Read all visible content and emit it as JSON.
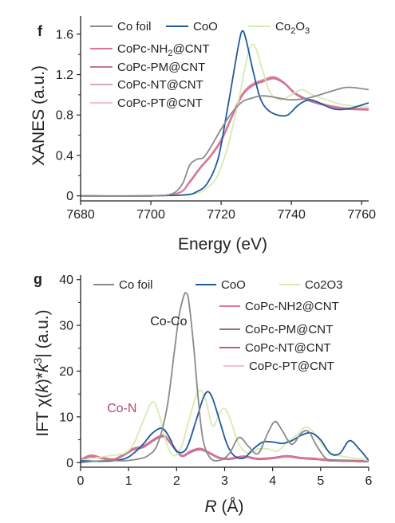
{
  "chart_data": [
    {
      "panel_label": "f",
      "type": "line",
      "xlabel": "Energy (eV)",
      "ylabel": "XANES (a.u.)",
      "xlim": [
        7680,
        7762
      ],
      "ylim": [
        -0.05,
        1.78
      ],
      "xticks": [
        7680,
        7700,
        7720,
        7740,
        7760
      ],
      "yticks": [
        0,
        0.4,
        0.8,
        1.2,
        1.6
      ],
      "ytick_labels": [
        "0",
        "0.4",
        "0.8",
        "1.2",
        "1.6"
      ],
      "legend": [
        "Co foil",
        "CoO",
        "Co2O3",
        "CoPc-NH2@CNT",
        "CoPc-PM@CNT",
        "CoPc-NT@CNT",
        "CoPc-PT@CNT"
      ],
      "legend_html": {
        "Co2O3": [
          "Co",
          "2",
          "O",
          "3"
        ],
        "CoPc-NH2@CNT": [
          "CoPc-NH",
          "2",
          "@CNT",
          ""
        ]
      },
      "series": [
        {
          "name": "Co foil",
          "color": "#8a8a8a",
          "x": [
            7680,
            7700,
            7706,
            7709,
            7711,
            7713,
            7715,
            7717,
            7720,
            7723,
            7726,
            7729,
            7732,
            7736,
            7740,
            7745,
            7750,
            7755,
            7758,
            7762
          ],
          "y": [
            0.0,
            0.0,
            0.02,
            0.12,
            0.3,
            0.36,
            0.38,
            0.48,
            0.66,
            0.82,
            0.93,
            0.97,
            0.99,
            0.97,
            0.95,
            0.97,
            1.02,
            1.07,
            1.07,
            1.05
          ]
        },
        {
          "name": "CoO",
          "color": "#1f5a9c",
          "x": [
            7680,
            7700,
            7710,
            7713,
            7716,
            7719,
            7721,
            7723,
            7725,
            7726,
            7727,
            7729,
            7731,
            7733,
            7736,
            7739,
            7742,
            7745,
            7748,
            7752,
            7756,
            7762
          ],
          "y": [
            0.0,
            0.0,
            0.01,
            0.04,
            0.12,
            0.35,
            0.7,
            1.1,
            1.5,
            1.63,
            1.56,
            1.25,
            0.98,
            0.86,
            0.8,
            0.8,
            0.9,
            0.95,
            0.92,
            0.86,
            0.86,
            0.92
          ]
        },
        {
          "name": "Co2O3",
          "color": "#d6ecb0",
          "x": [
            7680,
            7700,
            7712,
            7716,
            7719,
            7722,
            7725,
            7727,
            7728,
            7729,
            7730,
            7732,
            7734,
            7737,
            7740,
            7743,
            7746,
            7750,
            7755,
            7762
          ],
          "y": [
            0.0,
            0.0,
            0.02,
            0.08,
            0.2,
            0.5,
            0.95,
            1.3,
            1.45,
            1.5,
            1.45,
            1.22,
            1.02,
            0.95,
            1.0,
            1.05,
            1.0,
            0.95,
            0.9,
            0.88
          ]
        },
        {
          "name": "CoPc-NH2@CNT",
          "color": "#e07598",
          "x": [
            7680,
            7700,
            7708,
            7711,
            7714,
            7717,
            7720,
            7723,
            7726,
            7729,
            7732,
            7735,
            7738,
            7741,
            7745,
            7750,
            7755,
            7762
          ],
          "y": [
            0.0,
            0.0,
            0.03,
            0.14,
            0.28,
            0.4,
            0.55,
            0.78,
            1.0,
            1.1,
            1.14,
            1.17,
            1.12,
            1.02,
            0.95,
            0.9,
            0.87,
            0.86
          ]
        },
        {
          "name": "CoPc-PM@CNT",
          "color": "#c27597",
          "x": [
            7680,
            7700,
            7708,
            7711,
            7714,
            7717,
            7720,
            7723,
            7726,
            7729,
            7732,
            7735,
            7738,
            7741,
            7745,
            7750,
            7755,
            7762
          ],
          "y": [
            0.0,
            0.0,
            0.03,
            0.13,
            0.27,
            0.39,
            0.54,
            0.77,
            0.99,
            1.09,
            1.13,
            1.16,
            1.11,
            1.01,
            0.94,
            0.89,
            0.86,
            0.85
          ]
        },
        {
          "name": "CoPc-NT@CNT",
          "color": "#d9a7b8",
          "x": [
            7680,
            7700,
            7708,
            7711,
            7714,
            7717,
            7720,
            7723,
            7726,
            7729,
            7732,
            7735,
            7738,
            7741,
            7745,
            7750,
            7755,
            7762
          ],
          "y": [
            0.0,
            0.0,
            0.03,
            0.14,
            0.28,
            0.4,
            0.56,
            0.79,
            1.01,
            1.11,
            1.15,
            1.18,
            1.12,
            1.02,
            0.95,
            0.9,
            0.87,
            0.86
          ]
        },
        {
          "name": "CoPc-PT@CNT",
          "color": "#f2bfcf",
          "x": [
            7680,
            7700,
            7708,
            7711,
            7714,
            7717,
            7720,
            7723,
            7726,
            7729,
            7732,
            7735,
            7738,
            7741,
            7745,
            7750,
            7755,
            7762
          ],
          "y": [
            0.0,
            0.0,
            0.03,
            0.14,
            0.28,
            0.4,
            0.55,
            0.78,
            1.0,
            1.1,
            1.14,
            1.17,
            1.12,
            1.02,
            0.95,
            0.9,
            0.87,
            0.86
          ]
        }
      ]
    },
    {
      "panel_label": "g",
      "type": "line",
      "xlabel_html": [
        "R",
        " (Å)"
      ],
      "ylabel_html": [
        "IFT χ(",
        "k",
        ")*",
        "k",
        "3",
        "| (a.u.)"
      ],
      "xlim": [
        0,
        6
      ],
      "ylim": [
        -1,
        41
      ],
      "xticks": [
        0,
        1,
        2,
        3,
        4,
        5,
        6
      ],
      "yticks": [
        0,
        10,
        20,
        30,
        40
      ],
      "legend": [
        "Co foil",
        "CoO",
        "Co2O3",
        "CoPc-NH2@CNT",
        "CoPc-PM@CNT",
        "CoPc-NT@CNT",
        "CoPc-PT@CNT"
      ],
      "annotations": [
        {
          "text": "Co-Co",
          "x": 1.45,
          "y": 30,
          "color": "#222222"
        },
        {
          "text": "Co-N",
          "x": 0.55,
          "y": 11,
          "color": "#b0477a"
        }
      ],
      "series": [
        {
          "name": "Co foil",
          "color": "#8a8a8a",
          "x": [
            0,
            0.3,
            0.6,
            0.9,
            1.2,
            1.4,
            1.6,
            1.8,
            1.95,
            2.05,
            2.15,
            2.2,
            2.25,
            2.35,
            2.45,
            2.55,
            2.7,
            2.9,
            3.1,
            3.3,
            3.5,
            3.7,
            3.9,
            4.05,
            4.2,
            4.4,
            4.6,
            4.75,
            4.9,
            5.1,
            5.3,
            5.6,
            6.0
          ],
          "y": [
            0,
            0.3,
            0.5,
            0.4,
            0.8,
            1.5,
            4,
            12,
            24,
            32,
            36.5,
            37,
            35.5,
            26,
            14,
            5,
            1,
            0.5,
            2,
            5.5,
            3.5,
            2,
            6.5,
            9,
            7,
            4,
            6.5,
            6.8,
            4,
            1,
            0.4,
            0.3,
            0.2
          ]
        },
        {
          "name": "CoO",
          "color": "#1f5a9c",
          "x": [
            0,
            0.5,
            0.9,
            1.1,
            1.3,
            1.5,
            1.7,
            1.85,
            2.0,
            2.2,
            2.4,
            2.55,
            2.65,
            2.75,
            2.9,
            3.05,
            3.2,
            3.4,
            3.6,
            3.8,
            4.0,
            4.2,
            4.4,
            4.6,
            4.8,
            5.0,
            5.2,
            5.4,
            5.6,
            5.8,
            6.0
          ],
          "y": [
            0.4,
            0.3,
            0.8,
            2,
            4,
            6.5,
            7.5,
            5.5,
            2.5,
            3,
            9,
            14,
            15.5,
            14,
            9,
            4,
            1.5,
            1,
            3,
            4.5,
            4.5,
            4.2,
            4.8,
            6,
            6.5,
            5,
            2,
            2,
            4.8,
            3,
            0.5
          ]
        },
        {
          "name": "Co2O3",
          "color": "#d6ecb0",
          "x": [
            0,
            0.3,
            0.6,
            0.9,
            1.1,
            1.3,
            1.5,
            1.65,
            1.8,
            1.95,
            2.1,
            2.25,
            2.4,
            2.5,
            2.6,
            2.75,
            2.9,
            3.0,
            3.1,
            3.3,
            3.5,
            3.7,
            3.9,
            4.1,
            4.3,
            4.5,
            4.7,
            4.9,
            5.1,
            5.4,
            5.7,
            6.0
          ],
          "y": [
            0.5,
            1,
            1.5,
            2,
            4,
            9,
            13.3,
            10,
            4,
            1.5,
            3.5,
            9,
            14.5,
            15.8,
            14,
            8,
            11,
            11.8,
            10,
            4,
            2,
            3,
            3,
            2.5,
            4.5,
            6,
            7.8,
            6,
            3,
            1.5,
            1,
            0.5
          ]
        },
        {
          "name": "CoPc-NH2@CNT",
          "color": "#e07598",
          "x": [
            0,
            0.2,
            0.45,
            0.7,
            0.9,
            1.1,
            1.3,
            1.45,
            1.6,
            1.75,
            1.9,
            2.1,
            2.3,
            2.5,
            2.7,
            2.9,
            3.1,
            3.4,
            3.7,
            4.0,
            4.3,
            4.6,
            4.9,
            5.2,
            5.6,
            6.0
          ],
          "y": [
            0.5,
            1.5,
            1,
            0.7,
            1.8,
            3,
            3.5,
            4.5,
            5.5,
            5.8,
            4,
            1.5,
            2.5,
            3,
            2,
            1,
            0.8,
            1.3,
            0.8,
            1,
            1.4,
            1,
            0.8,
            0.5,
            0.4,
            0.3
          ]
        },
        {
          "name": "CoPc-PM@CNT",
          "color": "#9e6f86",
          "x": [
            0,
            0.2,
            0.45,
            0.7,
            0.9,
            1.1,
            1.3,
            1.45,
            1.6,
            1.75,
            1.9,
            2.1,
            2.3,
            2.5,
            2.7,
            2.9,
            3.1,
            3.4,
            3.7,
            4.0,
            4.3,
            4.6,
            4.9,
            5.2,
            5.6,
            6.0
          ],
          "y": [
            0.4,
            1.3,
            0.9,
            0.6,
            1.6,
            2.8,
            3.3,
            4.3,
            5.3,
            5.6,
            3.8,
            1.4,
            2.3,
            2.8,
            1.9,
            0.9,
            0.7,
            1.2,
            0.7,
            0.9,
            1.3,
            0.9,
            0.7,
            0.4,
            0.3,
            0.2
          ]
        },
        {
          "name": "CoPc-NT@CNT",
          "color": "#c9558a",
          "x": [
            0,
            0.2,
            0.45,
            0.7,
            0.9,
            1.1,
            1.3,
            1.45,
            1.6,
            1.75,
            1.9,
            2.1,
            2.3,
            2.5,
            2.7,
            2.9,
            3.1,
            3.4,
            3.7,
            4.0,
            4.3,
            4.6,
            4.9,
            5.2,
            5.6,
            6.0
          ],
          "y": [
            0.6,
            1.6,
            1.1,
            0.8,
            1.9,
            3.1,
            3.6,
            4.6,
            5.6,
            5.9,
            4.1,
            1.6,
            2.6,
            3.1,
            2.1,
            1.1,
            0.9,
            1.4,
            0.9,
            1.1,
            1.5,
            1.1,
            0.9,
            0.6,
            0.5,
            0.4
          ]
        },
        {
          "name": "CoPc-PT@CNT",
          "color": "#f2bfcf",
          "x": [
            0,
            0.2,
            0.45,
            0.7,
            0.9,
            1.1,
            1.3,
            1.45,
            1.6,
            1.75,
            1.9,
            2.1,
            2.3,
            2.5,
            2.7,
            2.9,
            3.1,
            3.4,
            3.7,
            4.0,
            4.3,
            4.6,
            4.9,
            5.2,
            5.6,
            6.0
          ],
          "y": [
            0.5,
            1.4,
            1,
            0.7,
            1.7,
            2.9,
            3.4,
            4.4,
            5.4,
            5.7,
            3.9,
            1.5,
            2.4,
            2.9,
            2,
            1,
            0.8,
            1.3,
            0.8,
            1,
            1.4,
            1,
            0.8,
            0.5,
            0.4,
            0.3
          ]
        }
      ]
    }
  ]
}
